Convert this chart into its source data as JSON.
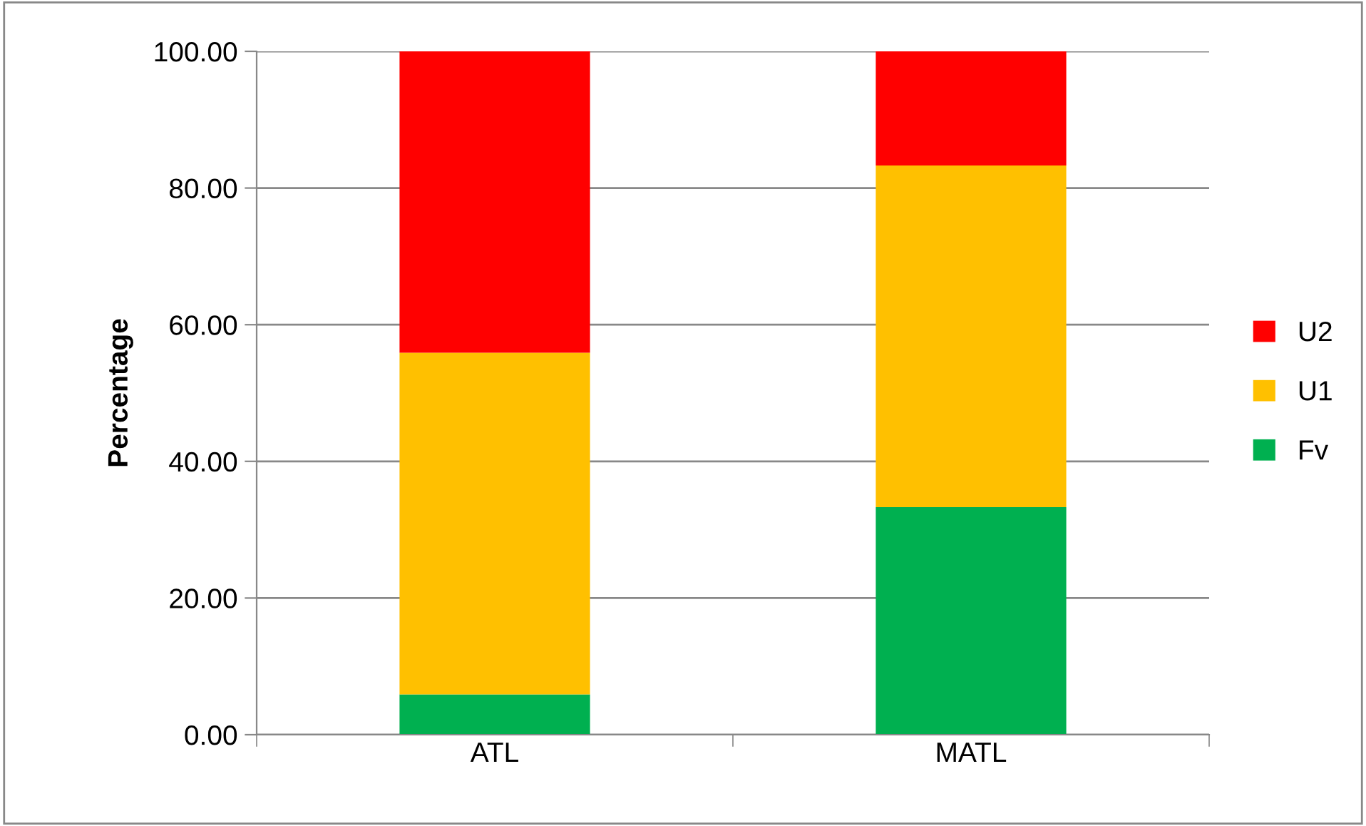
{
  "chart_data": {
    "type": "bar",
    "stacked": true,
    "ylabel": "Percentage",
    "categories": [
      "ATL",
      "MATL"
    ],
    "series": [
      {
        "name": "Fv",
        "color": "#00b050",
        "values": [
          5.9,
          33.3
        ]
      },
      {
        "name": "U1",
        "color": "#ffc000",
        "values": [
          50.0,
          50.0
        ]
      },
      {
        "name": "U2",
        "color": "#ff0000",
        "values": [
          44.1,
          16.7
        ]
      }
    ],
    "ylim": [
      0,
      100
    ],
    "yticks": [
      {
        "value": 0,
        "label": "0.00"
      },
      {
        "value": 20,
        "label": "20.00"
      },
      {
        "value": 40,
        "label": "40.00"
      },
      {
        "value": 60,
        "label": "60.00"
      },
      {
        "value": 80,
        "label": "80.00"
      },
      {
        "value": 100,
        "label": "100.00"
      }
    ],
    "grid": "y",
    "legend": "right"
  }
}
